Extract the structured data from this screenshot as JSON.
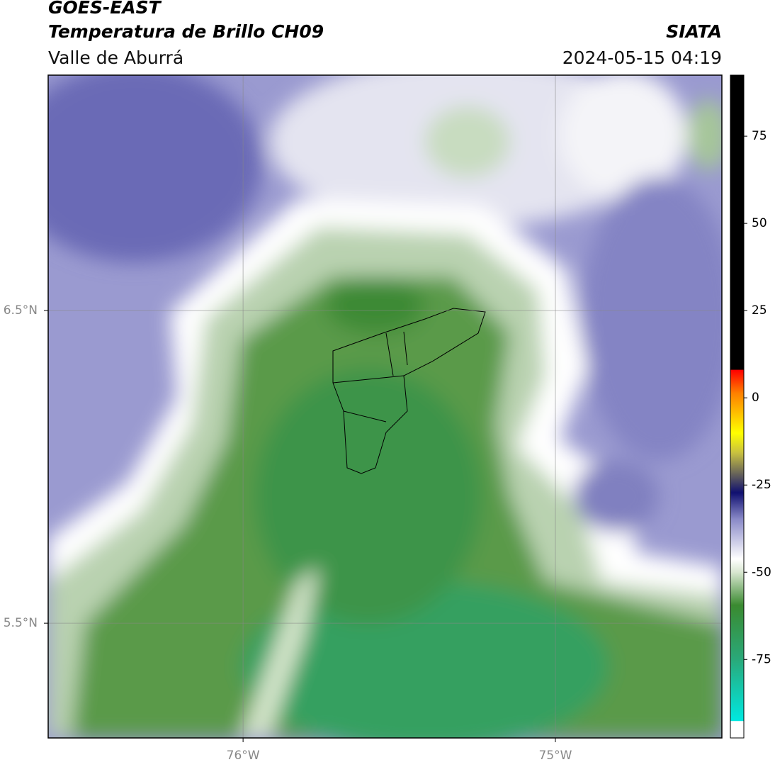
{
  "header": {
    "title": "GOES-EAST",
    "subtitle": "Temperatura de Brillo CH09",
    "region": "Valle de Aburrá",
    "source": "SIATA",
    "datetime": "2024-05-15 04:19"
  },
  "map": {
    "xlim": [
      -76.624,
      -74.467
    ],
    "ylim": [
      5.133,
      7.253
    ],
    "xticks": [
      {
        "value": -76,
        "label": "76°W"
      },
      {
        "value": -75,
        "label": "75°W"
      }
    ],
    "yticks": [
      {
        "value": 6.5,
        "label": "6.5°N"
      },
      {
        "value": 5.5,
        "label": "5.5°N"
      }
    ],
    "grid": true
  },
  "colorbar": {
    "lim": [
      -97.5,
      92.5
    ],
    "ticks": [
      75,
      50,
      25,
      0,
      -25,
      -50,
      -75
    ]
  }
}
